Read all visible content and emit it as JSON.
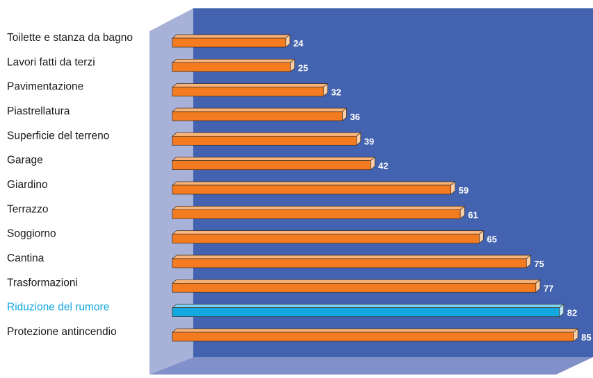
{
  "chart_data": {
    "type": "bar",
    "orientation": "horizontal",
    "style": "3d",
    "categories": [
      "Toilette e stanza da bagno",
      "Lavori fatti da terzi",
      "Pavimentazione",
      "Piastrellatura",
      "Superficie del terreno",
      "Garage",
      "Giardino",
      "Terrazzo",
      "Soggiorno",
      "Cantina",
      "Trasformazioni",
      "Riduzione del rumore",
      "Protezione antincendio"
    ],
    "values": [
      24,
      25,
      32,
      36,
      39,
      42,
      59,
      61,
      65,
      75,
      77,
      82,
      85
    ],
    "value_labels": [
      "24",
      "25",
      "32",
      "36",
      "39",
      "42",
      "59",
      "61",
      "65",
      "75",
      "77",
      "82",
      "85"
    ],
    "highlight_index": 11,
    "xlim": [
      0,
      85
    ],
    "grid": false,
    "legend": "none"
  },
  "colors": {
    "back_wall": "#4363b0",
    "side_wall": "#a8b2d8",
    "floor": "#8190c8",
    "bar": "#f47b20",
    "bar_top": "#f9b47a",
    "bar_end": "#fbd0a8",
    "highlight_bar": "#14a8e0",
    "highlight_top": "#7dd3f2",
    "highlight_end": "#b6e6f8",
    "label": "#1a1a1a",
    "highlight_label": "#14a8e0",
    "value_label": "#ffffff"
  }
}
